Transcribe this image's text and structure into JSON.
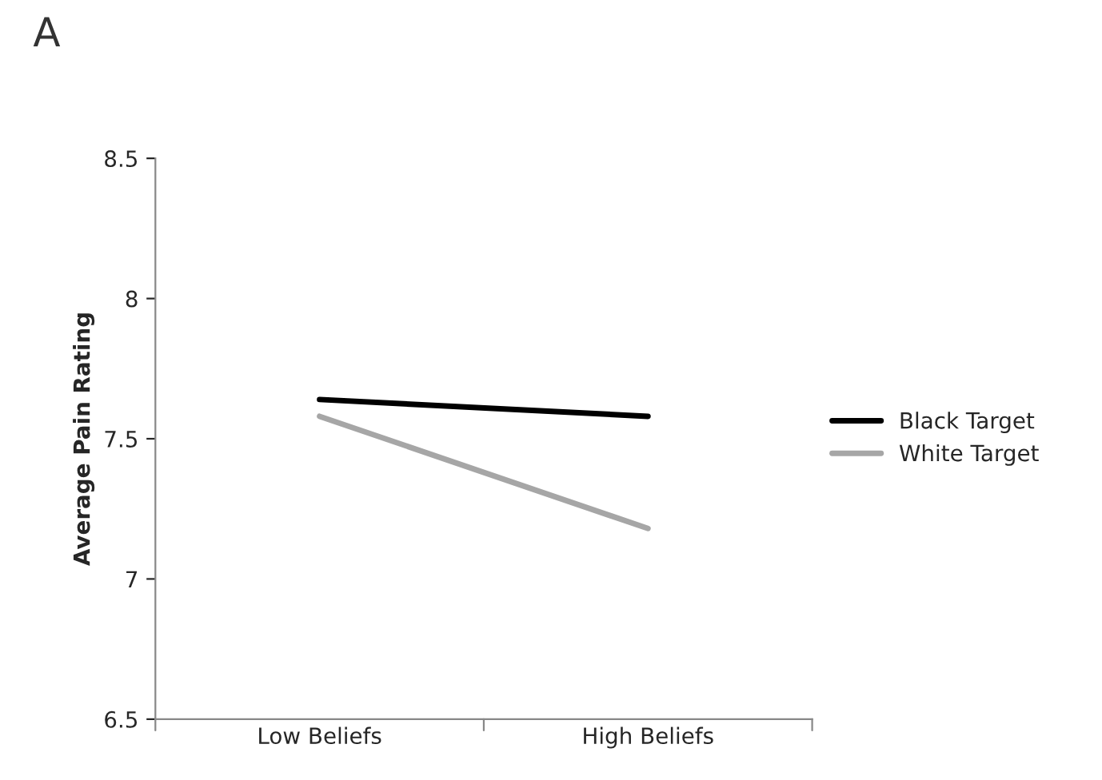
{
  "chart_data": {
    "type": "line",
    "title": "A",
    "ylabel": "Average Pain Rating",
    "categories": [
      "Low Beliefs",
      "High Beliefs"
    ],
    "series": [
      {
        "name": "Black Target",
        "color": "#000000",
        "values": [
          7.64,
          7.58
        ]
      },
      {
        "name": "White Target",
        "color": "#a6a6a6",
        "values": [
          7.58,
          7.18
        ]
      }
    ],
    "ylim": [
      6.5,
      8.5
    ],
    "yticks": [
      6.5,
      7,
      7.5,
      8,
      8.5
    ],
    "grid": false,
    "legend": "right",
    "marker": "none",
    "line_style": "solid"
  }
}
